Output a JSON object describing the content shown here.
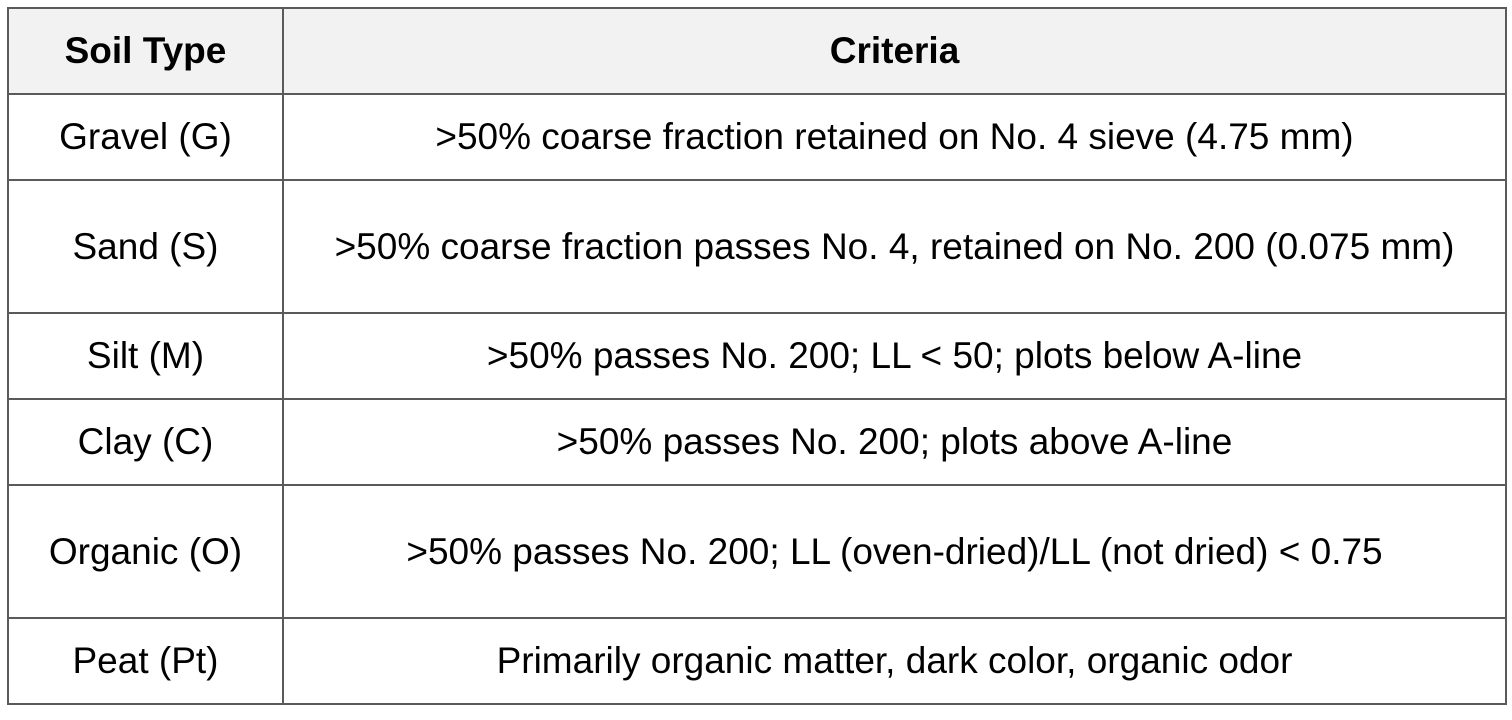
{
  "table": {
    "headers": [
      "Soil Type",
      "Criteria"
    ],
    "rows": [
      {
        "soil_type": "Gravel (G)",
        "criteria": ">50% coarse fraction retained on No. 4 sieve (4.75 mm)"
      },
      {
        "soil_type": "Sand (S)",
        "criteria": ">50% coarse fraction passes No. 4, retained on No. 200 (0.075 mm)"
      },
      {
        "soil_type": "Silt (M)",
        "criteria": ">50% passes No. 200; LL < 50; plots below A-line"
      },
      {
        "soil_type": "Clay (C)",
        "criteria": ">50% passes No. 200; plots above A-line"
      },
      {
        "soil_type": "Organic (O)",
        "criteria": ">50% passes No. 200; LL (oven-dried)/LL (not dried) < 0.75"
      },
      {
        "soil_type": "Peat (Pt)",
        "criteria": "Primarily organic matter, dark color, organic odor"
      }
    ]
  }
}
